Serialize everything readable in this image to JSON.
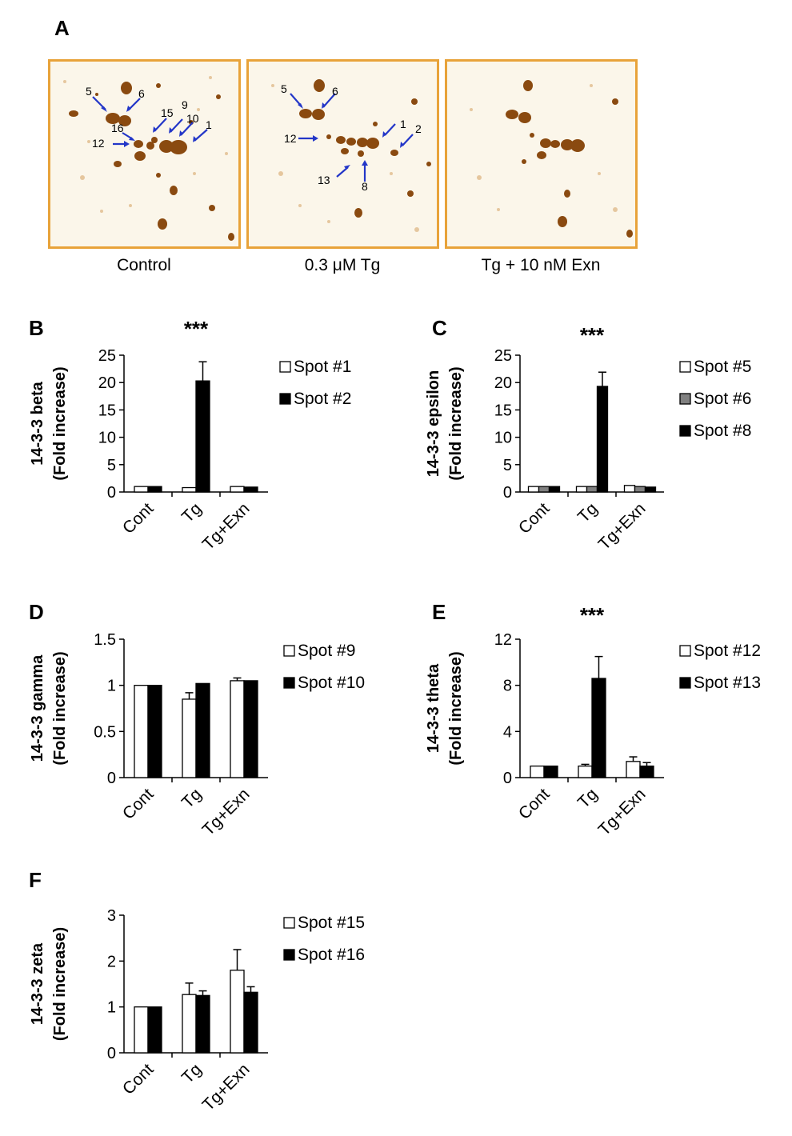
{
  "panel_labels": [
    "A",
    "B",
    "C",
    "D",
    "E",
    "F"
  ],
  "gels": [
    {
      "caption": "Control",
      "labels": [
        "5",
        "6",
        "15",
        "9",
        "10",
        "1",
        "16",
        "12"
      ]
    },
    {
      "caption": "0.3 μM Tg",
      "labels": [
        "5",
        "6",
        "12",
        "1",
        "2",
        "13",
        "8"
      ]
    },
    {
      "caption": "Tg + 10 nM Exn",
      "labels": []
    }
  ],
  "colors": {
    "gel_border": "#e8a33a",
    "spot": "#8a4a10",
    "arrow": "#2336c8",
    "bar_white": "#ffffff",
    "bar_gray": "#808080",
    "bar_black": "#000000"
  },
  "chart_data": [
    {
      "panel": "B",
      "type": "bar",
      "ylabel_line1": "14-3-3 beta",
      "ylabel_line2": "(Fold increase)",
      "categories": [
        "Cont",
        "Tg",
        "Tg+Exn"
      ],
      "ylim": [
        0,
        25
      ],
      "yticks": [
        "0",
        "5",
        "10",
        "15",
        "20",
        "25"
      ],
      "significance": "***",
      "significance_category": "Tg",
      "series": [
        {
          "name": "Spot #1",
          "color": "#ffffff",
          "values": [
            1.0,
            0.8,
            1.0
          ],
          "errors": [
            0,
            0,
            0
          ]
        },
        {
          "name": "Spot #2",
          "color": "#000000",
          "values": [
            1.0,
            20.3,
            0.9
          ],
          "errors": [
            0,
            3.5,
            0
          ]
        }
      ]
    },
    {
      "panel": "C",
      "type": "bar",
      "ylabel_line1": "14-3-3 epsilon",
      "ylabel_line2": "(Fold increase)",
      "categories": [
        "Cont",
        "Tg",
        "Tg+Exn"
      ],
      "ylim": [
        0,
        25
      ],
      "yticks": [
        "0",
        "5",
        "10",
        "15",
        "20",
        "25"
      ],
      "significance": "***",
      "significance_category": "Tg",
      "series": [
        {
          "name": "Spot #5",
          "color": "#ffffff",
          "values": [
            1.0,
            1.0,
            1.2
          ],
          "errors": [
            0,
            0,
            0
          ]
        },
        {
          "name": "Spot #6",
          "color": "#808080",
          "values": [
            1.0,
            1.0,
            1.0
          ],
          "errors": [
            0,
            0,
            0
          ]
        },
        {
          "name": "Spot #8",
          "color": "#000000",
          "values": [
            1.0,
            19.3,
            0.9
          ],
          "errors": [
            0,
            2.6,
            0
          ]
        }
      ]
    },
    {
      "panel": "D",
      "type": "bar",
      "ylabel_line1": "14-3-3 gamma",
      "ylabel_line2": "(Fold increase)",
      "categories": [
        "Cont",
        "Tg",
        "Tg+Exn"
      ],
      "ylim": [
        0,
        1.5
      ],
      "yticks": [
        "0",
        "0.5",
        "1",
        "1.5"
      ],
      "significance": "",
      "significance_category": "",
      "series": [
        {
          "name": "Spot #9",
          "color": "#ffffff",
          "values": [
            1.0,
            0.85,
            1.05
          ],
          "errors": [
            0,
            0.07,
            0.03
          ]
        },
        {
          "name": "Spot #10",
          "color": "#000000",
          "values": [
            1.0,
            1.02,
            1.05
          ],
          "errors": [
            0,
            0,
            0
          ]
        }
      ]
    },
    {
      "panel": "E",
      "type": "bar",
      "ylabel_line1": "14-3-3 theta",
      "ylabel_line2": "(Fold increase)",
      "categories": [
        "Cont",
        "Tg",
        "Tg+Exn"
      ],
      "ylim": [
        0,
        12
      ],
      "yticks": [
        "0",
        "4",
        "8",
        "12"
      ],
      "significance": "***",
      "significance_category": "Tg",
      "series": [
        {
          "name": "Spot #12",
          "color": "#ffffff",
          "values": [
            1.0,
            1.0,
            1.4
          ],
          "errors": [
            0,
            0.15,
            0.4
          ]
        },
        {
          "name": "Spot #13",
          "color": "#000000",
          "values": [
            1.0,
            8.6,
            1.0
          ],
          "errors": [
            0,
            1.9,
            0.3
          ]
        }
      ]
    },
    {
      "panel": "F",
      "type": "bar",
      "ylabel_line1": "14-3-3 zeta",
      "ylabel_line2": "(Fold increase)",
      "categories": [
        "Cont",
        "Tg",
        "Tg+Exn"
      ],
      "ylim": [
        0,
        3
      ],
      "yticks": [
        "0",
        "1",
        "2",
        "3"
      ],
      "significance": "",
      "significance_category": "",
      "series": [
        {
          "name": "Spot #15",
          "color": "#ffffff",
          "values": [
            1.0,
            1.27,
            1.8
          ],
          "errors": [
            0,
            0.25,
            0.45
          ]
        },
        {
          "name": "Spot #16",
          "color": "#000000",
          "values": [
            1.0,
            1.25,
            1.32
          ],
          "errors": [
            0,
            0.1,
            0.12
          ]
        }
      ]
    }
  ]
}
